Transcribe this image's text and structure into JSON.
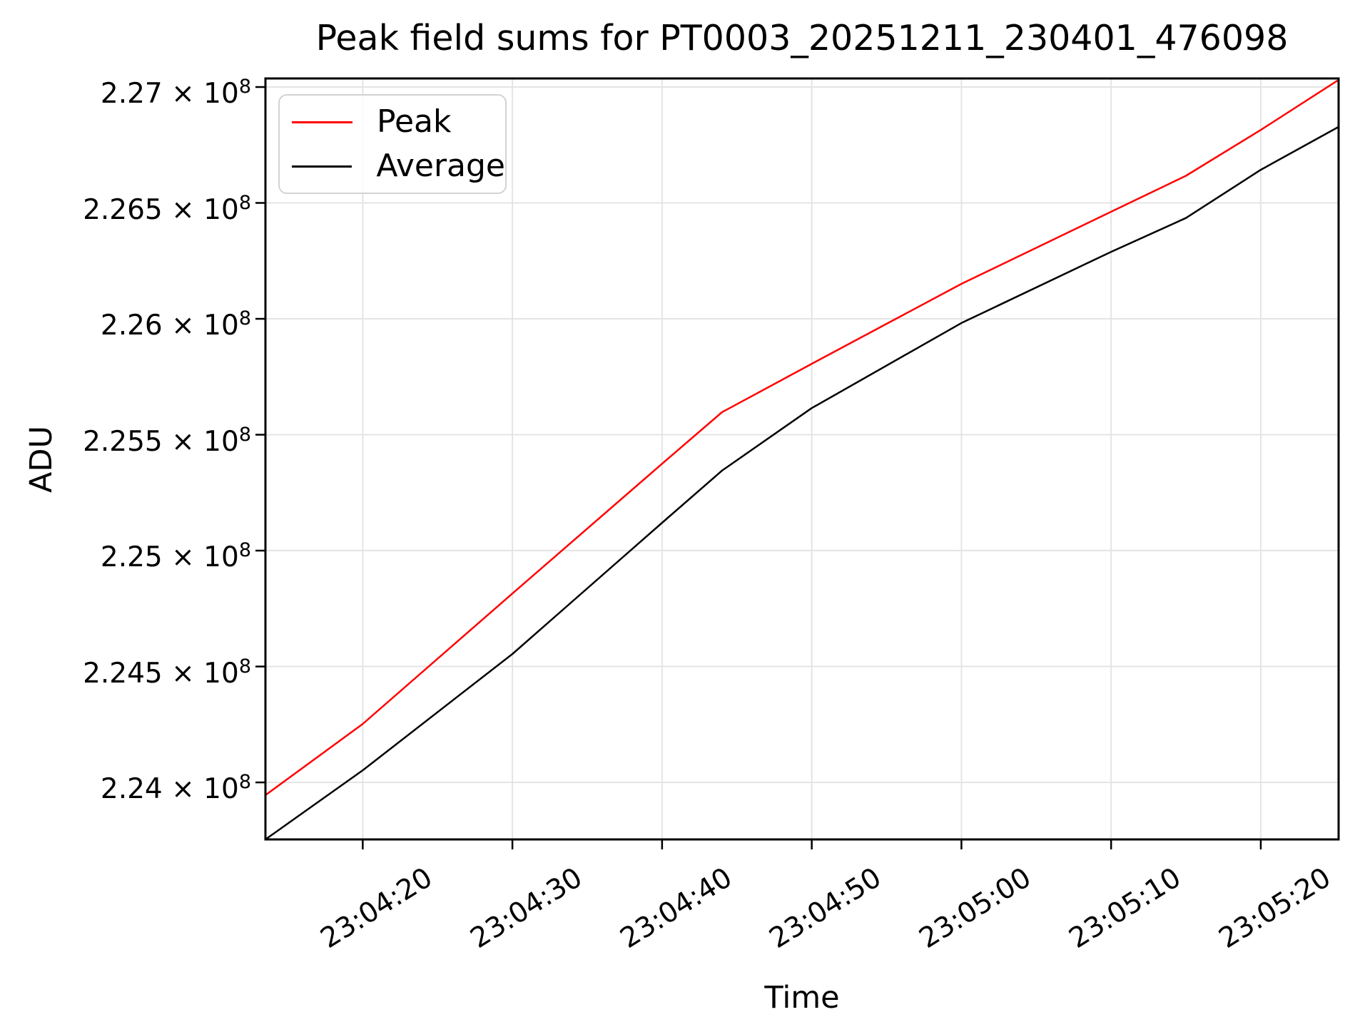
{
  "chart_data": {
    "type": "line",
    "title": "Peak field sums for PT0003_20251211_230401_476098",
    "xlabel": "Time",
    "ylabel": "ADU",
    "grid": true,
    "legend": {
      "position": "upper-left"
    },
    "colors": {
      "background": "#ffffff",
      "grid": "#e4e4e4",
      "spine": "#000000",
      "tick": "#000000",
      "legend_border": "#d2d2d2"
    },
    "xlim": [
      "23:04:13.5",
      "23:05:25.2"
    ],
    "ylim": [
      223754000,
      227037000
    ],
    "x_tick_labels": [
      "23:04:20",
      "23:04:30",
      "23:04:40",
      "23:04:50",
      "23:05:00",
      "23:05:10",
      "23:05:20"
    ],
    "y_tick_values": [
      224000000,
      224500000,
      225000000,
      225500000,
      226000000,
      226500000,
      227000000
    ],
    "y_tick_mantissas": [
      "2.24",
      "2.245",
      "2.25",
      "2.255",
      "2.26",
      "2.265",
      "2.27"
    ],
    "y_tick_multiplier_text": " × 10",
    "y_tick_exponent": "8",
    "series": [
      {
        "name": "Peak",
        "color": "#ff0000",
        "points": [
          [
            "23:04:13.5",
            223945000
          ],
          [
            "23:04:20",
            224252000
          ],
          [
            "23:04:30",
            224815000
          ],
          [
            "23:04:40",
            225375000
          ],
          [
            "23:04:44",
            225597000
          ],
          [
            "23:04:50",
            225806000
          ],
          [
            "23:05:00",
            226151000
          ],
          [
            "23:05:10",
            226462000
          ],
          [
            "23:05:15",
            226617000
          ],
          [
            "23:05:20",
            226815000
          ],
          [
            "23:05:25.2",
            227031000
          ]
        ]
      },
      {
        "name": "Average",
        "color": "#000000",
        "points": [
          [
            "23:04:13.5",
            223754000
          ],
          [
            "23:04:20",
            224052000
          ],
          [
            "23:04:30",
            224554000
          ],
          [
            "23:04:40",
            225120000
          ],
          [
            "23:04:44",
            225345000
          ],
          [
            "23:04:50",
            225615000
          ],
          [
            "23:05:00",
            225982000
          ],
          [
            "23:05:10",
            226289000
          ],
          [
            "23:05:15",
            226435000
          ],
          [
            "23:05:20",
            226643000
          ],
          [
            "23:05:25.2",
            226828000
          ]
        ]
      }
    ]
  }
}
